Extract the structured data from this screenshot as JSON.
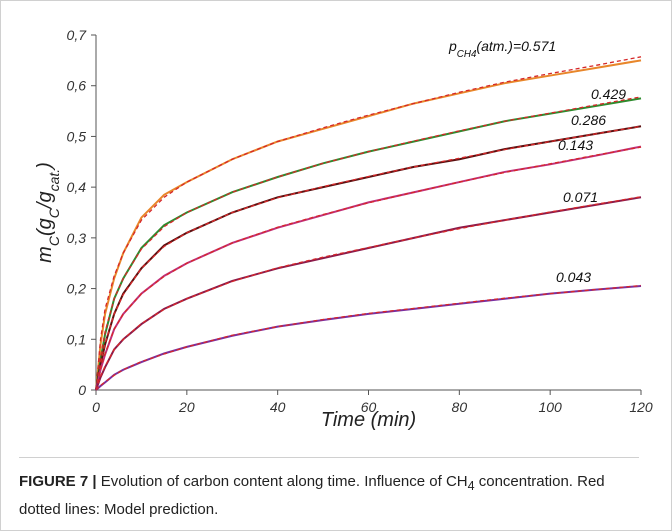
{
  "chart_data": {
    "type": "line",
    "xlabel": "Time (min)",
    "ylabel": [
      "m",
      "C",
      "(g",
      "C",
      "/g",
      "cat.",
      ")"
    ],
    "x": [
      0,
      1,
      2,
      4,
      6,
      10,
      15,
      20,
      30,
      40,
      50,
      60,
      70,
      80,
      90,
      100,
      110,
      120
    ],
    "xlim": [
      0,
      120
    ],
    "xticks": [
      0,
      20,
      40,
      60,
      80,
      100,
      120
    ],
    "ylim": [
      0,
      0.7
    ],
    "yticks": [
      0,
      {
        "value": 0.1,
        "label": "0,1"
      },
      {
        "value": 0.2,
        "label": "0,2"
      },
      {
        "value": 0.3,
        "label": "0,3"
      },
      {
        "value": 0.4,
        "label": "0,4"
      },
      {
        "value": 0.5,
        "label": "0,5"
      },
      {
        "value": 0.6,
        "label": "0,6"
      },
      {
        "value": 0.7,
        "label": "0,7"
      }
    ],
    "model_color": "#d62728",
    "series": [
      {
        "label": [
          "p",
          "CH4",
          "(atm.)=0.571"
        ],
        "color": "#e8862a",
        "values": [
          0,
          0.09,
          0.15,
          0.22,
          0.27,
          0.34,
          0.385,
          0.41,
          0.455,
          0.49,
          0.515,
          0.54,
          0.565,
          0.585,
          0.605,
          0.62,
          0.635,
          0.65
        ],
        "model": [
          0,
          0.1,
          0.16,
          0.225,
          0.27,
          0.335,
          0.38,
          0.41,
          0.455,
          0.49,
          0.517,
          0.542,
          0.565,
          0.587,
          0.607,
          0.624,
          0.64,
          0.657
        ]
      },
      {
        "label": "0.429",
        "color": "#2e8b2e",
        "values": [
          0,
          0.06,
          0.11,
          0.18,
          0.22,
          0.28,
          0.325,
          0.35,
          0.39,
          0.42,
          0.447,
          0.47,
          0.49,
          0.51,
          0.53,
          0.545,
          0.56,
          0.575
        ],
        "model": [
          0,
          0.065,
          0.115,
          0.18,
          0.22,
          0.278,
          0.322,
          0.35,
          0.39,
          0.42,
          0.447,
          0.47,
          0.491,
          0.511,
          0.53,
          0.546,
          0.562,
          0.578
        ]
      },
      {
        "label": "0.286",
        "color": "#5a1010",
        "values": [
          0,
          0.05,
          0.09,
          0.15,
          0.19,
          0.24,
          0.285,
          0.31,
          0.35,
          0.38,
          0.4,
          0.42,
          0.44,
          0.455,
          0.475,
          0.49,
          0.505,
          0.52
        ],
        "model": [
          0,
          0.052,
          0.092,
          0.15,
          0.188,
          0.24,
          0.283,
          0.31,
          0.35,
          0.379,
          0.401,
          0.421,
          0.44,
          0.457,
          0.474,
          0.49,
          0.505,
          0.52
        ]
      },
      {
        "label": "0.143",
        "color": "#c0307a",
        "values": [
          0,
          0.04,
          0.07,
          0.12,
          0.15,
          0.19,
          0.225,
          0.25,
          0.29,
          0.32,
          0.345,
          0.37,
          0.39,
          0.41,
          0.43,
          0.445,
          0.462,
          0.48
        ],
        "model": [
          0,
          0.042,
          0.072,
          0.12,
          0.15,
          0.19,
          0.224,
          0.25,
          0.29,
          0.321,
          0.346,
          0.369,
          0.39,
          0.41,
          0.429,
          0.446,
          0.463,
          0.479
        ]
      },
      {
        "label": "0.071",
        "color": "#8b1a4a",
        "values": [
          0,
          0.025,
          0.045,
          0.08,
          0.1,
          0.13,
          0.16,
          0.18,
          0.215,
          0.24,
          0.26,
          0.28,
          0.3,
          0.32,
          0.335,
          0.35,
          0.365,
          0.38
        ],
        "model": [
          0,
          0.027,
          0.047,
          0.08,
          0.1,
          0.131,
          0.159,
          0.18,
          0.214,
          0.241,
          0.262,
          0.281,
          0.3,
          0.318,
          0.335,
          0.351,
          0.366,
          0.381
        ]
      },
      {
        "label": "0.043",
        "color": "#7a2fa0",
        "values": [
          0,
          0.008,
          0.015,
          0.03,
          0.04,
          0.055,
          0.072,
          0.085,
          0.107,
          0.125,
          0.138,
          0.15,
          0.16,
          0.17,
          0.18,
          0.19,
          0.198,
          0.205
        ],
        "model": [
          0,
          0.009,
          0.016,
          0.029,
          0.04,
          0.056,
          0.071,
          0.085,
          0.108,
          0.125,
          0.139,
          0.151,
          0.161,
          0.171,
          0.181,
          0.19,
          0.198,
          0.206
        ]
      }
    ],
    "caption_label": "FIGURE 7 |",
    "caption": [
      "Evolution of carbon content along time. Influence of CH",
      "4",
      " concentration. Red dotted lines: Model prediction."
    ]
  }
}
